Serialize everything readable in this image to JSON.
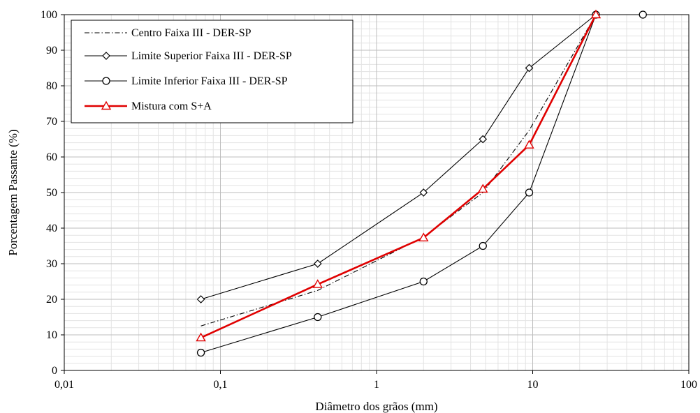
{
  "chart_data": {
    "type": "line",
    "title": "",
    "xlabel": "Diâmetro  dos grãos (mm)",
    "ylabel": "Porcentagem Passante (%)",
    "x_scale": "log",
    "xlim": [
      0.01,
      100
    ],
    "ylim": [
      0,
      100
    ],
    "x_ticks": [
      0.01,
      0.1,
      1,
      10,
      100
    ],
    "x_tick_labels": [
      "0,01",
      "0,1",
      "1",
      "10",
      "100"
    ],
    "y_ticks": [
      0,
      10,
      20,
      30,
      40,
      50,
      60,
      70,
      80,
      90,
      100
    ],
    "y_tick_labels": [
      "0",
      "10",
      "20",
      "30",
      "40",
      "50",
      "60",
      "70",
      "80",
      "90",
      "100"
    ],
    "grid": true,
    "legend_position": "top-left",
    "series": [
      {
        "name": "Centro Faixa III - DER-SP",
        "style": "dash-dot",
        "color": "#000000",
        "marker": "none",
        "x": [
          0.075,
          0.42,
          2.0,
          4.8,
          9.5,
          25.4,
          50.8
        ],
        "y": [
          12.5,
          22.5,
          37.5,
          50.0,
          67.5,
          100,
          100
        ]
      },
      {
        "name": "Limite Superior Faixa III - DER-SP",
        "style": "solid",
        "color": "#000000",
        "marker": "diamond",
        "x": [
          0.075,
          0.42,
          2.0,
          4.8,
          9.5,
          25.4,
          50.8
        ],
        "y": [
          20,
          30,
          50,
          65,
          85,
          100,
          100
        ]
      },
      {
        "name": "Limite Inferior Faixa III - DER-SP",
        "style": "solid",
        "color": "#000000",
        "marker": "circle",
        "x": [
          0.075,
          0.42,
          2.0,
          4.8,
          9.5,
          25.4,
          50.8
        ],
        "y": [
          5,
          15,
          25,
          35,
          50,
          100,
          100
        ]
      },
      {
        "name": "Mistura com S+A",
        "style": "solid",
        "color": "#e00000",
        "marker": "triangle",
        "x": [
          0.075,
          0.42,
          2.0,
          4.8,
          9.5,
          25.4
        ],
        "y": [
          9.2,
          24.2,
          37.3,
          51.0,
          63.4,
          100
        ]
      }
    ]
  }
}
